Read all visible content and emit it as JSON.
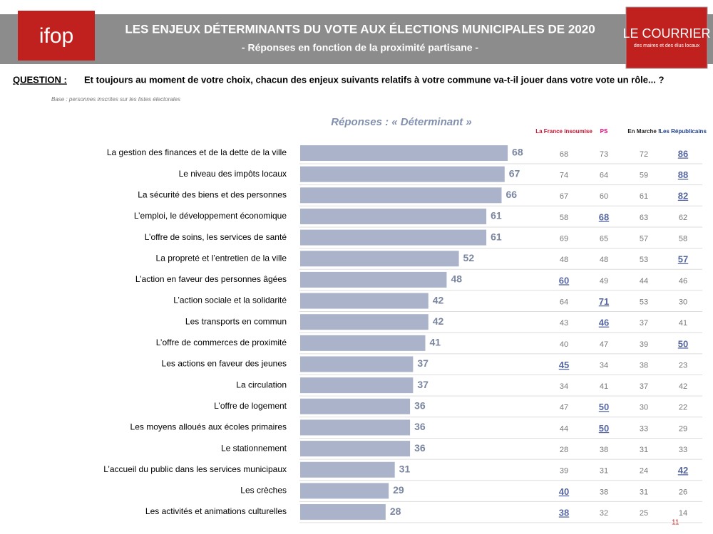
{
  "chart_data": {
    "type": "bar",
    "title": "LES ENJEUX DÉTERMINANTS DU VOTE AUX ÉLECTIONS MUNICIPALES DE 2020",
    "subtitle": "- Réponses en fonction de la proximité partisane -",
    "brand": "ifop",
    "partner": "LE COURRIER",
    "partner_tagline": "des maires et des élus locaux",
    "question_label": "QUESTION :",
    "question": "Et toujours au moment de votre choix, chacun des enjeux suivants relatifs à votre commune va-t-il jouer dans votre vote un rôle... ?",
    "base": "Base : personnes inscrites sur les listes électorales",
    "values_title": "Réponses : « Déterminant »",
    "page_number": "11",
    "color": "#aab3c9",
    "xlim": [
      0,
      100
    ],
    "categories": [
      "La gestion des finances et de la dette de la ville",
      "Le niveau des impôts locaux",
      "La sécurité des biens et des personnes",
      "L’emploi, le développement économique",
      "L’offre de soins, les services de santé",
      "La propreté et l’entretien de la ville",
      "L’action en faveur des personnes âgées",
      "L’action sociale et la solidarité",
      "Les transports en commun",
      "L’offre de commerces de proximité",
      "Les actions en faveur des jeunes",
      "La circulation",
      "L’offre de logement",
      "Les moyens alloués aux écoles primaires",
      "Le stationnement",
      "L’accueil du public dans les services municipaux",
      "Les crèches",
      "Les activités et animations culturelles"
    ],
    "values": [
      68,
      67,
      66,
      61,
      61,
      52,
      48,
      42,
      42,
      41,
      37,
      37,
      36,
      36,
      36,
      31,
      29,
      28
    ],
    "series": [
      {
        "name": "La France insoumise",
        "color": "#c8102e",
        "values": [
          68,
          74,
          67,
          58,
          69,
          48,
          60,
          64,
          43,
          40,
          45,
          34,
          47,
          44,
          28,
          39,
          40,
          38
        ],
        "highlighted": [
          false,
          false,
          false,
          false,
          false,
          false,
          true,
          false,
          false,
          false,
          true,
          false,
          false,
          false,
          false,
          false,
          true,
          true
        ]
      },
      {
        "name": "PS",
        "color": "#e4007c",
        "values": [
          73,
          64,
          60,
          68,
          65,
          48,
          49,
          71,
          46,
          47,
          34,
          41,
          50,
          50,
          38,
          31,
          38,
          32
        ],
        "highlighted": [
          false,
          false,
          false,
          true,
          false,
          false,
          false,
          true,
          true,
          false,
          false,
          false,
          true,
          true,
          false,
          false,
          false,
          false
        ]
      },
      {
        "name": "En Marche !",
        "color": "#222222",
        "values": [
          72,
          59,
          61,
          63,
          57,
          53,
          44,
          53,
          37,
          39,
          38,
          37,
          30,
          33,
          31,
          24,
          31,
          25
        ],
        "highlighted": [
          false,
          false,
          false,
          false,
          false,
          false,
          false,
          false,
          false,
          false,
          false,
          false,
          false,
          false,
          false,
          false,
          false,
          false
        ]
      },
      {
        "name": "Les Républicains",
        "color": "#1d3f8f",
        "values": [
          86,
          88,
          82,
          62,
          58,
          57,
          46,
          30,
          41,
          50,
          23,
          42,
          22,
          29,
          33,
          42,
          26,
          14
        ],
        "highlighted": [
          true,
          true,
          true,
          false,
          false,
          true,
          false,
          false,
          false,
          true,
          false,
          false,
          false,
          false,
          false,
          true,
          false,
          false
        ]
      }
    ]
  }
}
